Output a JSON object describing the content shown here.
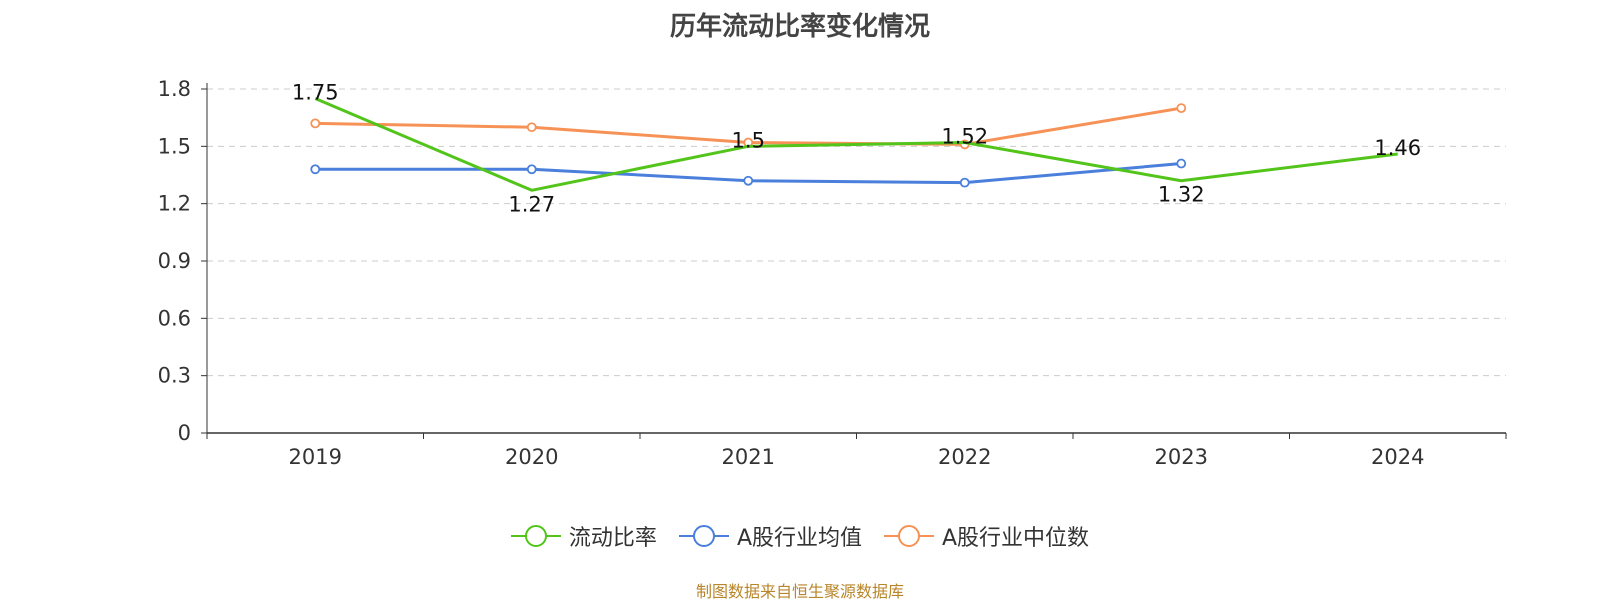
{
  "chart_data": {
    "type": "line",
    "title": "历年流动比率变化情况",
    "categories": [
      "2019",
      "2020",
      "2021",
      "2022",
      "2023",
      "2024"
    ],
    "ylim": [
      0,
      1.8
    ],
    "yticks": [
      "0",
      "0.3",
      "0.6",
      "0.9",
      "1.2",
      "1.5",
      "1.8"
    ],
    "grid": true,
    "legend_position": "bottom",
    "series": [
      {
        "name": "流动比率",
        "color": "#52c41a",
        "values": [
          1.75,
          1.27,
          1.5,
          1.52,
          1.32,
          1.46
        ],
        "labels": [
          "1.75",
          "1.27",
          "1.5",
          "1.52",
          "1.32",
          "1.46"
        ],
        "show_labels": true,
        "show_markers": false
      },
      {
        "name": "A股行业均值",
        "color": "#4a7fdc",
        "values": [
          1.38,
          1.38,
          1.32,
          1.31,
          1.41,
          null
        ],
        "show_markers": true
      },
      {
        "name": "A股行业中位数",
        "color": "#f79256",
        "values": [
          1.62,
          1.6,
          1.52,
          1.51,
          1.7,
          null
        ],
        "show_markers": true
      }
    ]
  },
  "source": "制图数据来自恒生聚源数据库"
}
